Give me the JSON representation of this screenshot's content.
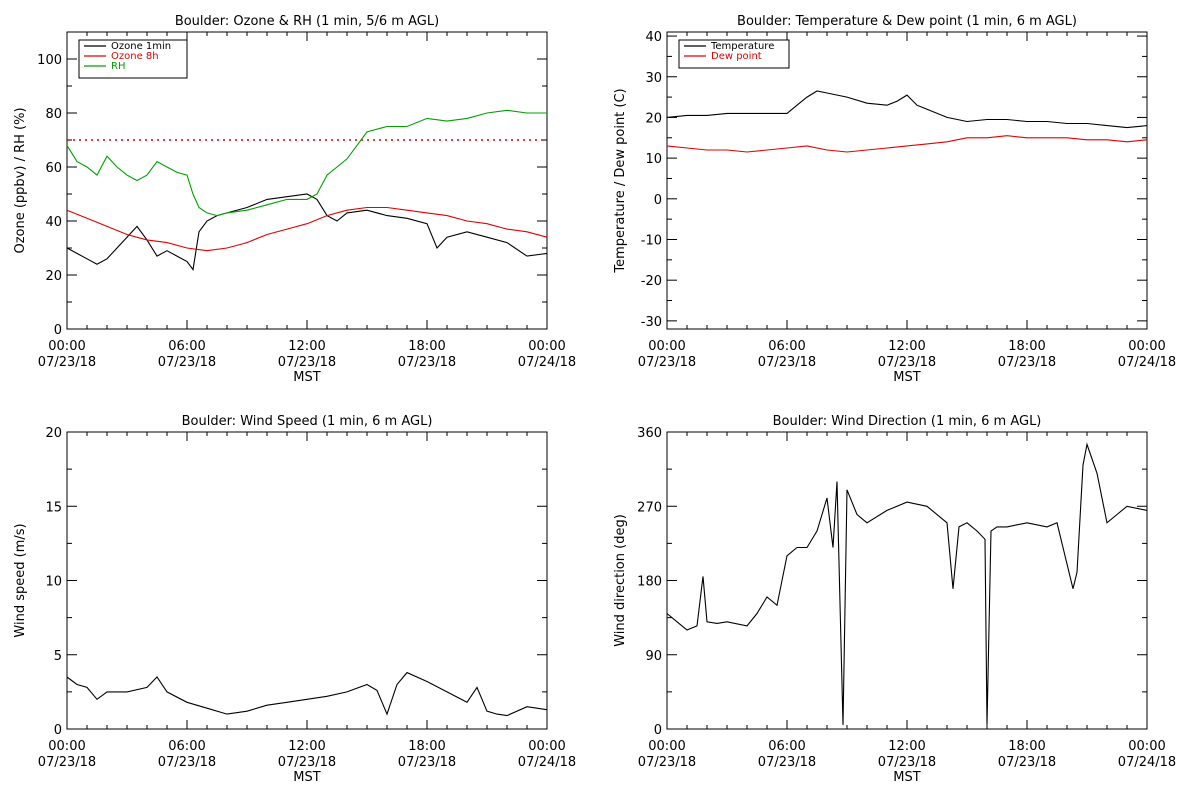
{
  "page": {
    "background": "#ffffff"
  },
  "x_axis": {
    "tick_labels": [
      [
        "00:00",
        "07/23/18"
      ],
      [
        "06:00",
        "07/23/18"
      ],
      [
        "12:00",
        "07/23/18"
      ],
      [
        "18:00",
        "07/23/18"
      ],
      [
        "00:00",
        "07/24/18"
      ]
    ],
    "label": "MST"
  },
  "chart_data": [
    {
      "type": "line",
      "title": "Boulder: Ozone & RH (1 min, 5/6 m AGL)",
      "xlabel": "MST",
      "ylabel": "Ozone (ppbv) / RH (%)",
      "xlim": [
        0,
        24
      ],
      "ylim": [
        0,
        110
      ],
      "yticks": [
        0,
        20,
        40,
        60,
        80,
        100
      ],
      "legend_placement": "top-left",
      "reference_lines": [
        {
          "y": 70,
          "color": "#e00000",
          "style": "dotted"
        }
      ],
      "series": [
        {
          "name": "Ozone 1min",
          "color": "#000000",
          "x": [
            0,
            0.5,
            1,
            1.5,
            2,
            2.5,
            3,
            3.5,
            4,
            4.5,
            5,
            5.5,
            6,
            6.3,
            6.6,
            7,
            7.5,
            8,
            9,
            10,
            11,
            12,
            12.5,
            13,
            13.5,
            14,
            15,
            16,
            17,
            18,
            18.5,
            19,
            20,
            21,
            22,
            23,
            24
          ],
          "y": [
            30,
            28,
            26,
            24,
            26,
            30,
            34,
            38,
            33,
            27,
            29,
            27,
            25,
            22,
            36,
            40,
            42,
            43,
            45,
            48,
            49,
            50,
            48,
            42,
            40,
            43,
            44,
            42,
            41,
            39,
            30,
            34,
            36,
            34,
            32,
            27,
            28
          ]
        },
        {
          "name": "Ozone 8h",
          "color": "#e00000",
          "x": [
            0,
            1,
            2,
            3,
            4,
            5,
            6,
            7,
            8,
            9,
            10,
            11,
            12,
            13,
            14,
            15,
            16,
            17,
            18,
            19,
            20,
            21,
            22,
            23,
            24
          ],
          "y": [
            44,
            41,
            38,
            35,
            33,
            32,
            30,
            29,
            30,
            32,
            35,
            37,
            39,
            42,
            44,
            45,
            45,
            44,
            43,
            42,
            40,
            39,
            37,
            36,
            34
          ]
        },
        {
          "name": "RH",
          "color": "#00a000",
          "x": [
            0,
            0.5,
            1,
            1.5,
            2,
            2.5,
            3,
            3.5,
            4,
            4.5,
            5,
            5.5,
            6,
            6.3,
            6.6,
            7,
            7.5,
            8,
            9,
            10,
            11,
            12,
            12.5,
            13,
            13.5,
            14,
            14.5,
            15,
            16,
            17,
            18,
            19,
            20,
            21,
            22,
            23,
            24
          ],
          "y": [
            68,
            62,
            60,
            57,
            64,
            60,
            57,
            55,
            57,
            62,
            60,
            58,
            57,
            50,
            45,
            43,
            42,
            43,
            44,
            46,
            48,
            48,
            50,
            57,
            60,
            63,
            68,
            73,
            75,
            75,
            78,
            77,
            78,
            80,
            81,
            80,
            80
          ]
        }
      ]
    },
    {
      "type": "line",
      "title": "Boulder: Temperature & Dew point (1 min, 6 m AGL)",
      "xlabel": "MST",
      "ylabel": "Temperature / Dew point (C)",
      "xlim": [
        0,
        24
      ],
      "ylim": [
        -32,
        41
      ],
      "yticks": [
        -30,
        -20,
        -10,
        0,
        10,
        20,
        30,
        40
      ],
      "legend_placement": "top-left",
      "series": [
        {
          "name": "Temperature",
          "color": "#000000",
          "x": [
            0,
            1,
            2,
            3,
            4,
            5,
            6,
            6.5,
            7,
            7.5,
            8,
            9,
            10,
            11,
            11.5,
            12,
            12.5,
            13,
            14,
            15,
            16,
            17,
            18,
            19,
            20,
            21,
            22,
            23,
            24
          ],
          "y": [
            20,
            20.5,
            20.5,
            21,
            21,
            21,
            21,
            23,
            25,
            26.5,
            26,
            25,
            23.5,
            23,
            24,
            25.5,
            23,
            22,
            20,
            19,
            19.5,
            19.5,
            19,
            19,
            18.5,
            18.5,
            18,
            17.5,
            18
          ]
        },
        {
          "name": "Dew point",
          "color": "#e00000",
          "x": [
            0,
            1,
            2,
            3,
            4,
            5,
            6,
            7,
            8,
            9,
            10,
            11,
            12,
            13,
            14,
            15,
            16,
            17,
            18,
            19,
            20,
            21,
            22,
            23,
            24
          ],
          "y": [
            13,
            12.5,
            12,
            12,
            11.5,
            12,
            12.5,
            13,
            12,
            11.5,
            12,
            12.5,
            13,
            13.5,
            14,
            15,
            15,
            15.5,
            15,
            15,
            15,
            14.5,
            14.5,
            14,
            14.5
          ]
        }
      ]
    },
    {
      "type": "line",
      "title": "Boulder: Wind Speed (1 min, 6 m AGL)",
      "xlabel": "MST",
      "ylabel": "Wind speed (m/s)",
      "xlim": [
        0,
        24
      ],
      "ylim": [
        0,
        20
      ],
      "yticks": [
        0,
        5,
        10,
        15,
        20
      ],
      "series": [
        {
          "color": "#000000",
          "x": [
            0,
            0.5,
            1,
            1.5,
            2,
            3,
            4,
            4.5,
            5,
            6,
            7,
            8,
            9,
            10,
            11,
            12,
            13,
            14,
            15,
            15.5,
            16,
            16.5,
            17,
            18,
            19,
            20,
            20.5,
            21,
            21.5,
            22,
            23,
            24
          ],
          "y": [
            3.5,
            3,
            2.8,
            2,
            2.5,
            2.5,
            2.8,
            3.5,
            2.5,
            1.8,
            1.4,
            1,
            1.2,
            1.6,
            1.8,
            2,
            2.2,
            2.5,
            3,
            2.6,
            1,
            3,
            3.8,
            3.2,
            2.5,
            1.8,
            2.8,
            1.2,
            1,
            0.9,
            1.5,
            1.3
          ]
        }
      ]
    },
    {
      "type": "line",
      "title": "Boulder: Wind Direction (1 min, 6 m AGL)",
      "xlabel": "MST",
      "ylabel": "Wind direction (deg)",
      "xlim": [
        0,
        24
      ],
      "ylim": [
        0,
        360
      ],
      "yticks": [
        0,
        90,
        180,
        270,
        360
      ],
      "series": [
        {
          "color": "#000000",
          "x": [
            0,
            0.5,
            1,
            1.5,
            1.8,
            2,
            2.5,
            3,
            4,
            4.5,
            5,
            5.5,
            6,
            6.5,
            7,
            7.5,
            8,
            8.3,
            8.5,
            8.8,
            9,
            9.5,
            10,
            11,
            12,
            13,
            14,
            14.3,
            14.6,
            15,
            15.5,
            15.9,
            16,
            16.2,
            16.5,
            17,
            18,
            19,
            19.5,
            20,
            20.3,
            20.5,
            20.8,
            21,
            21.5,
            22,
            22.5,
            23,
            24
          ],
          "y": [
            140,
            130,
            120,
            125,
            185,
            130,
            128,
            130,
            125,
            140,
            160,
            150,
            210,
            220,
            220,
            240,
            280,
            220,
            300,
            5,
            290,
            260,
            250,
            265,
            275,
            270,
            250,
            170,
            245,
            250,
            240,
            230,
            5,
            240,
            245,
            245,
            250,
            245,
            250,
            200,
            170,
            190,
            320,
            345,
            310,
            250,
            260,
            270,
            265
          ]
        }
      ]
    }
  ]
}
